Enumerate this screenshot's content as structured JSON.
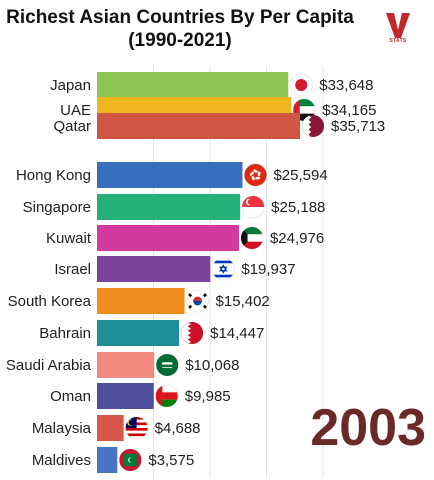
{
  "title_line1": "Richest Asian Countries By Per Capita",
  "title_line2": "(1990-2021)",
  "logo": {
    "letter": "V",
    "text": "STATS",
    "color": "#c0282d"
  },
  "year": "2003",
  "chart_data": {
    "type": "bar",
    "orientation": "horizontal",
    "title": "Richest Asian Countries By Per Capita (1990-2021)",
    "grid": true,
    "categories": [
      "Japan",
      "UAE",
      "Qatar",
      "Hong Kong",
      "Singapore",
      "Kuwait",
      "Israel",
      "South Korea",
      "Bahrain",
      "Saudi Arabia",
      "Oman",
      "Malaysia",
      "Maldives"
    ],
    "values": [
      33648,
      34165,
      35713,
      25594,
      25188,
      24976,
      19937,
      15402,
      14447,
      10068,
      9985,
      4688,
      3575
    ],
    "value_labels": [
      "$33,648",
      "$34,165",
      "$35,713",
      "$25,594",
      "$25,188",
      "$24,976",
      "$19,937",
      "$15,402",
      "$14,447",
      "$10,068",
      "$9,985",
      "$4,688",
      "$3,575"
    ],
    "colors": [
      "#8cc656",
      "#f0b41e",
      "#cf5643",
      "#3a6fbf",
      "#25b07a",
      "#d23a9e",
      "#7d449a",
      "#ee8c1c",
      "#1e8f96",
      "#f3887e",
      "#4e4f9e",
      "#d7574a",
      "#4a72c4"
    ],
    "flags": [
      "japan-flag",
      "uae-flag",
      "qatar-flag",
      "hong-kong-flag",
      "singapore-flag",
      "kuwait-flag",
      "israel-flag",
      "south-korea-flag",
      "bahrain-flag",
      "saudi-arabia-flag",
      "oman-flag",
      "malaysia-flag",
      "maldives-flag"
    ]
  }
}
